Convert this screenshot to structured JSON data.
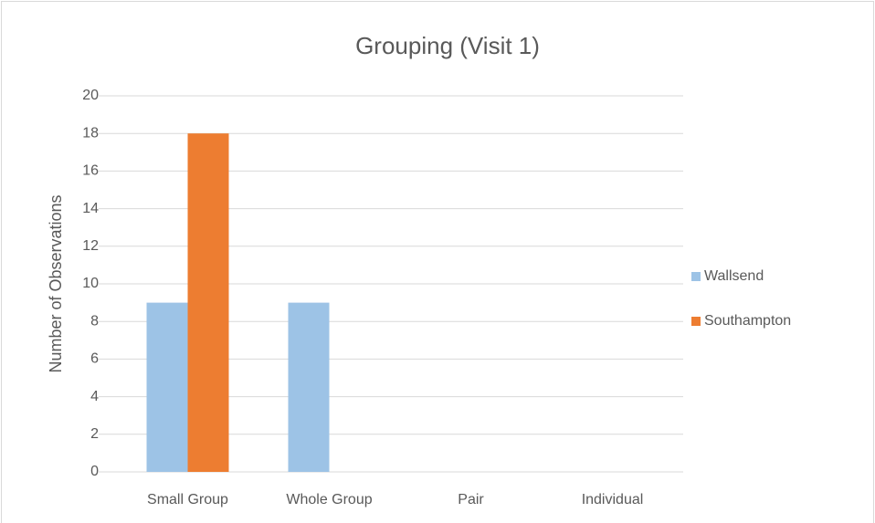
{
  "chart_data": {
    "type": "bar",
    "title": "Grouping (Visit 1)",
    "y_label": "Number of Observations",
    "categories": [
      "Small Group",
      "Whole Group",
      "Pair",
      "Individual"
    ],
    "series": [
      {
        "name": "Wallsend",
        "color": "#9dc3e6",
        "values": [
          9,
          9,
          0,
          0
        ]
      },
      {
        "name": "Southampton",
        "color": "#ed7d31",
        "values": [
          18,
          0,
          0,
          0
        ]
      }
    ],
    "ylim": [
      0,
      20
    ],
    "yticks": [
      0,
      2,
      4,
      6,
      8,
      10,
      12,
      14,
      16,
      18,
      20
    ],
    "grid": true,
    "legend": "right"
  }
}
